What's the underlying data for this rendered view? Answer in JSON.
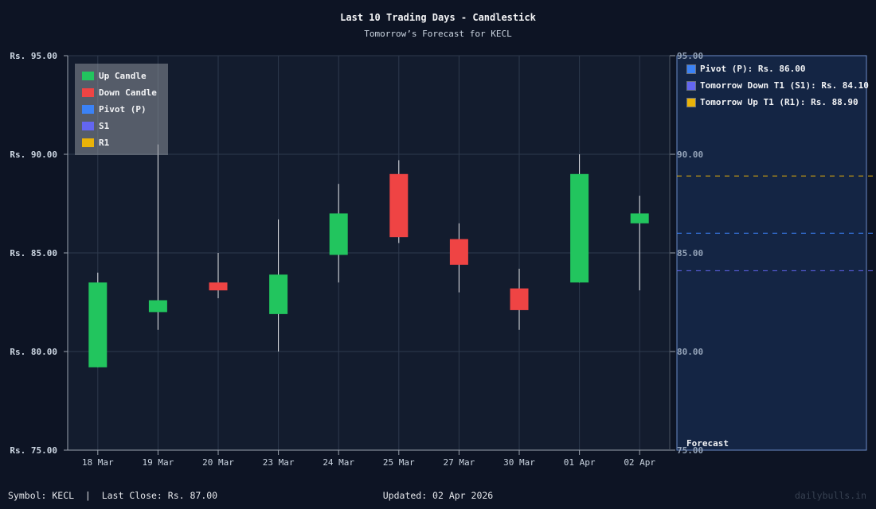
{
  "header": {
    "title": "Last 10 Trading Days - Candlestick",
    "subtitle": "Tomorrow’s Forecast for KECL"
  },
  "legend": {
    "items": [
      {
        "label": "Up Candle",
        "color": "#22c55e"
      },
      {
        "label": "Down Candle",
        "color": "#ef4444"
      },
      {
        "label": "Pivot (P)",
        "color": "#3b82f6"
      },
      {
        "label": "S1",
        "color": "#6366f1"
      },
      {
        "label": "R1",
        "color": "#eab308"
      }
    ]
  },
  "forecast_panel": {
    "label": "Forecast",
    "items": [
      {
        "label": "Pivot (P): Rs. 86.00",
        "color": "#3b82f6",
        "value": 86.0
      },
      {
        "label": "Tomorrow Down T1 (S1): Rs. 84.10",
        "color": "#6366f1",
        "value": 84.1
      },
      {
        "label": "Tomorrow Up T1 (R1): Rs. 88.90",
        "color": "#eab308",
        "value": 88.9
      }
    ],
    "y_ticks": [
      "95.00",
      "90.00",
      "85.00",
      "80.00",
      "75.00"
    ]
  },
  "footer": {
    "left": "Symbol: KECL  |  Last Close: Rs. 87.00",
    "center": "Updated: 02 Apr 2026",
    "right": "dailybulls.in"
  },
  "colors": {
    "up": "#22c55e",
    "down": "#ef4444",
    "pivot": "#3b82f6",
    "s1": "#6366f1",
    "r1": "#eab308",
    "plot_bg": "#131c2e",
    "forecast_bg": "#142544"
  },
  "chart_data": {
    "type": "candlestick",
    "title": "Last 10 Trading Days - Candlestick",
    "subtitle": "Tomorrow’s Forecast for KECL",
    "xlabel": "",
    "ylabel": "",
    "ylim": [
      75,
      95
    ],
    "y_ticks": [
      "Rs. 95.00",
      "Rs. 90.00",
      "Rs. 85.00",
      "Rs. 80.00",
      "Rs. 75.00"
    ],
    "grid": true,
    "legend_position": "top-left",
    "categories": [
      "18 Mar",
      "19 Mar",
      "20 Mar",
      "23 Mar",
      "24 Mar",
      "25 Mar",
      "27 Mar",
      "30 Mar",
      "01 Apr",
      "02 Apr"
    ],
    "series": [
      {
        "name": "open",
        "values": [
          79.2,
          82.0,
          83.5,
          81.9,
          84.9,
          89.0,
          85.7,
          83.2,
          83.5,
          86.5
        ]
      },
      {
        "name": "high",
        "values": [
          84.0,
          90.5,
          85.0,
          86.7,
          88.5,
          89.7,
          86.5,
          84.2,
          90.0,
          87.9
        ]
      },
      {
        "name": "low",
        "values": [
          79.2,
          81.1,
          82.7,
          80.0,
          83.5,
          85.5,
          83.0,
          81.1,
          83.5,
          83.1
        ]
      },
      {
        "name": "close",
        "values": [
          83.5,
          82.6,
          83.1,
          83.9,
          87.0,
          85.8,
          84.4,
          82.1,
          89.0,
          87.0
        ]
      }
    ],
    "forecast_lines": [
      {
        "name": "Pivot (P)",
        "value": 86.0
      },
      {
        "name": "Tomorrow Down T1 (S1)",
        "value": 84.1
      },
      {
        "name": "Tomorrow Up T1 (R1)",
        "value": 88.9
      }
    ],
    "last_close": 87.0
  }
}
